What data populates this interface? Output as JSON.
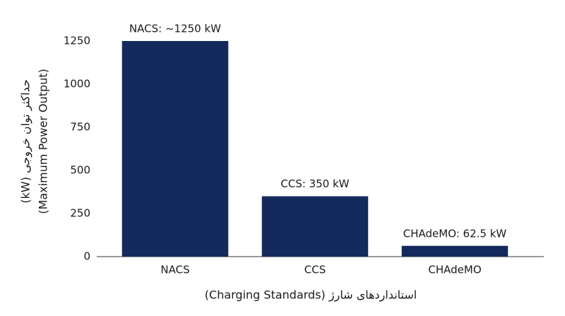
{
  "chart_data": {
    "type": "bar",
    "ylabel_lines": [
      "حداکثر توان خروجی (kW)",
      "(Maximum Power Output)"
    ],
    "xlabel": "استانداردهای شارژ (Charging Standards)",
    "categories": [
      "NACS",
      "CCS",
      "CHAdeMO"
    ],
    "values": [
      1250,
      350,
      62.5
    ],
    "value_labels": [
      "NACS: ~1250 kW",
      "CCS: 350 kW",
      "CHAdeMO: 62.5 kW"
    ],
    "color": "#152a5c",
    "ylim": [
      0,
      1250
    ],
    "yticks": [
      0,
      250,
      500,
      750,
      1000,
      1250
    ],
    "grid": false
  }
}
